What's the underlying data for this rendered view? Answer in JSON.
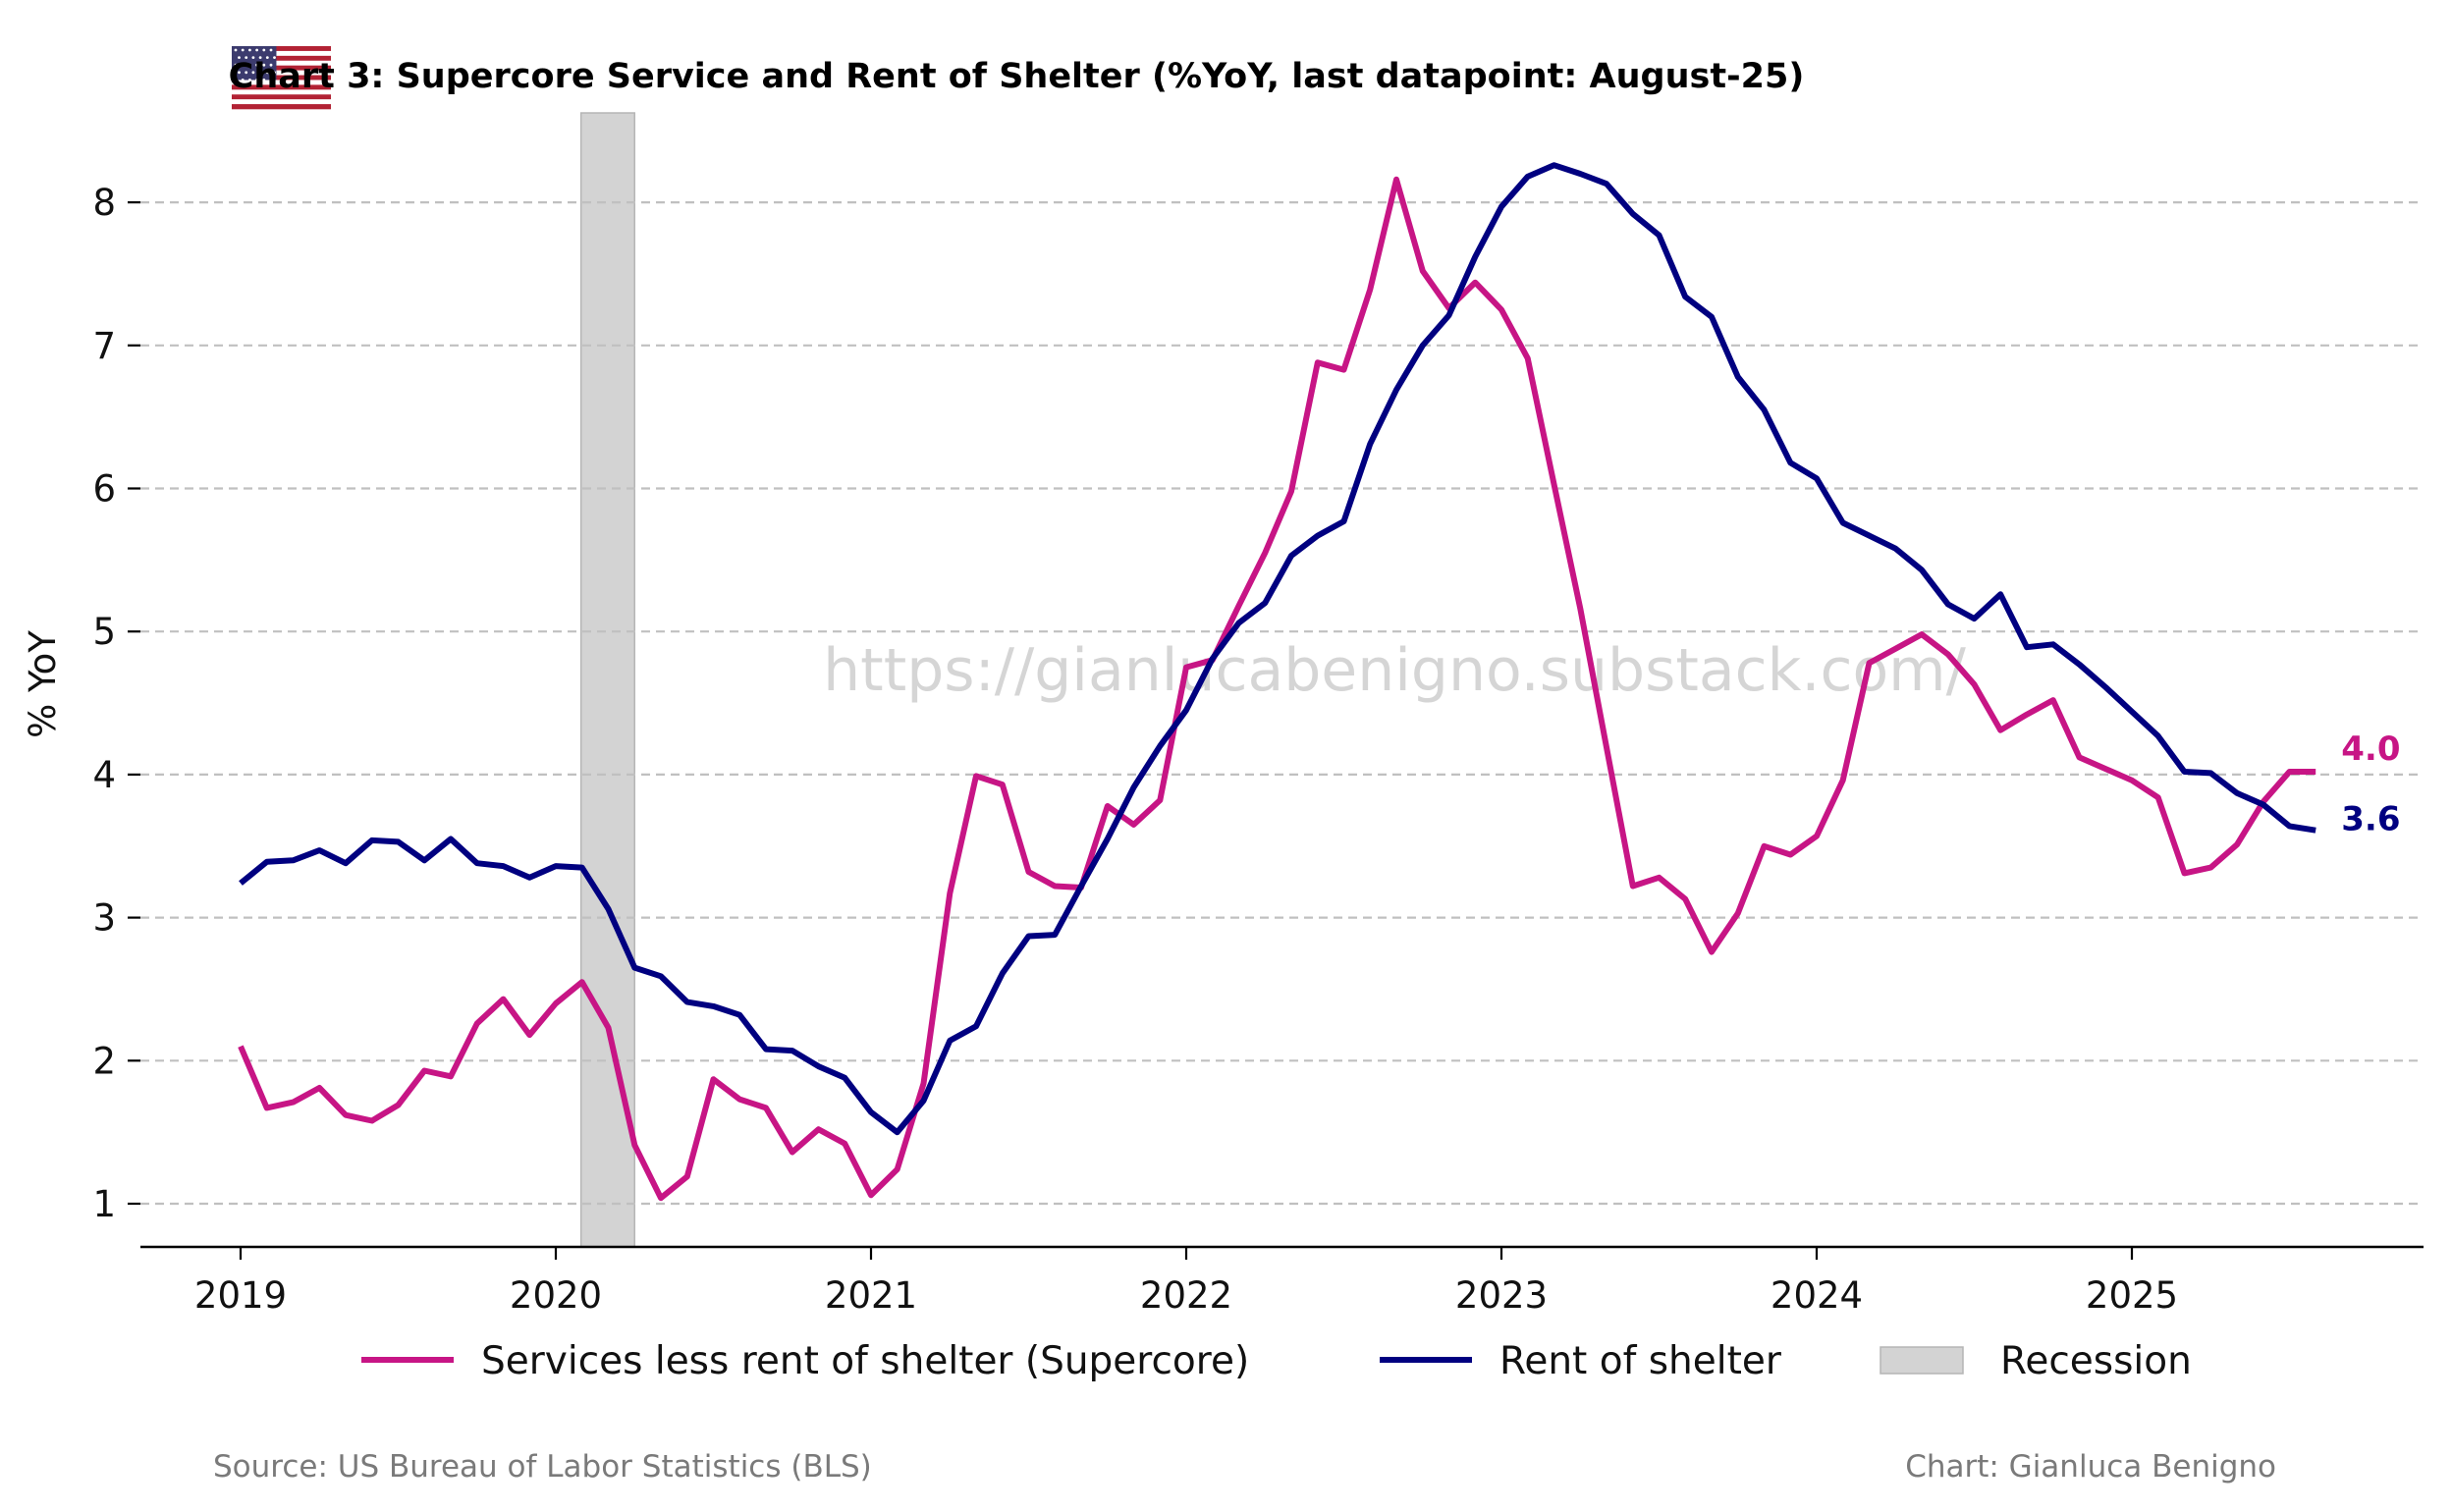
{
  "chart_data": {
    "type": "line",
    "title": "Chart 3: Supercore Service and Rent of Shelter (%YoY, last datapoint: August-25)",
    "ylabel": "% YoY",
    "xlabel": "",
    "xlim": [
      2018.75,
      2025.92
    ],
    "ylim": [
      0.67,
      8.6
    ],
    "x_ticks": [
      {
        "value": 2019,
        "label": "2019"
      },
      {
        "value": 2020,
        "label": "2020"
      },
      {
        "value": 2021,
        "label": "2021"
      },
      {
        "value": 2022,
        "label": "2022"
      },
      {
        "value": 2023,
        "label": "2023"
      },
      {
        "value": 2024,
        "label": "2024"
      },
      {
        "value": 2025,
        "label": "2025"
      }
    ],
    "y_ticks": [
      {
        "value": 1,
        "label": "1"
      },
      {
        "value": 2,
        "label": "2"
      },
      {
        "value": 3,
        "label": "3"
      },
      {
        "value": 4,
        "label": "4"
      },
      {
        "value": 5,
        "label": "5"
      },
      {
        "value": 6,
        "label": "6"
      },
      {
        "value": 7,
        "label": "7"
      },
      {
        "value": 8,
        "label": "8"
      }
    ],
    "grid": "horizontal dashed",
    "x_start": 2019.0,
    "x_step_months": 1,
    "series": [
      {
        "name": "Services less rent of shelter (Supercore)",
        "color": "#C71585",
        "end_label": "4.0",
        "values": [
          2.1,
          1.67,
          1.71,
          1.81,
          1.62,
          1.58,
          1.69,
          1.93,
          1.89,
          2.26,
          2.43,
          2.18,
          2.4,
          2.55,
          2.23,
          1.41,
          1.04,
          1.19,
          1.87,
          1.73,
          1.67,
          1.36,
          1.52,
          1.42,
          1.06,
          1.24,
          1.84,
          3.17,
          3.99,
          3.93,
          3.32,
          3.22,
          3.21,
          3.78,
          3.65,
          3.82,
          4.75,
          4.8,
          5.18,
          5.55,
          5.98,
          6.88,
          6.83,
          7.39,
          8.16,
          7.52,
          7.26,
          7.44,
          7.25,
          6.91,
          6.03,
          5.16,
          4.19,
          3.22,
          3.28,
          3.13,
          2.76,
          3.03,
          3.5,
          3.44,
          3.57,
          3.96,
          4.78,
          4.88,
          4.98,
          4.84,
          4.63,
          4.31,
          4.42,
          4.52,
          4.12,
          4.04,
          3.96,
          3.84,
          3.31,
          3.35,
          3.51,
          3.81,
          4.02,
          4.02
        ]
      },
      {
        "name": "Rent of shelter",
        "color": "#000080",
        "end_label": "3.6",
        "values": [
          3.24,
          3.39,
          3.4,
          3.47,
          3.38,
          3.54,
          3.53,
          3.4,
          3.55,
          3.38,
          3.36,
          3.28,
          3.36,
          3.35,
          3.06,
          2.65,
          2.59,
          2.41,
          2.38,
          2.32,
          2.08,
          2.07,
          1.96,
          1.88,
          1.64,
          1.5,
          1.72,
          2.14,
          2.24,
          2.61,
          2.87,
          2.88,
          3.22,
          3.55,
          3.91,
          4.2,
          4.45,
          4.81,
          5.06,
          5.2,
          5.53,
          5.67,
          5.77,
          6.31,
          6.69,
          7.0,
          7.21,
          7.62,
          7.97,
          8.18,
          8.26,
          8.2,
          8.13,
          7.92,
          7.77,
          7.34,
          7.2,
          6.78,
          6.55,
          6.18,
          6.07,
          5.76,
          5.67,
          5.58,
          5.43,
          5.19,
          5.09,
          5.26,
          4.89,
          4.91,
          4.77,
          4.61,
          4.44,
          4.27,
          4.02,
          4.01,
          3.87,
          3.79,
          3.64,
          3.61
        ]
      }
    ],
    "shaded_regions": [
      {
        "name": "Recession",
        "x_start": 2020.08,
        "x_end": 2020.25,
        "color": "#d3d3d3"
      }
    ],
    "legend": {
      "placement": "bottom-center",
      "entries": [
        {
          "label": "Services less rent of shelter (Supercore)",
          "color": "#C71585",
          "kind": "line"
        },
        {
          "label": "Rent of shelter",
          "color": "#000080",
          "kind": "line"
        },
        {
          "label": "Recession",
          "color": "#d3d3d3",
          "kind": "patch"
        }
      ]
    },
    "annotations": {
      "watermark": "https://gianlucabenigno.substack.com/",
      "source": "Source: US Bureau of Labor Statistics (BLS)",
      "credit": "Chart: Gianluca Benigno",
      "flag_icon": "us-flag-icon"
    }
  }
}
